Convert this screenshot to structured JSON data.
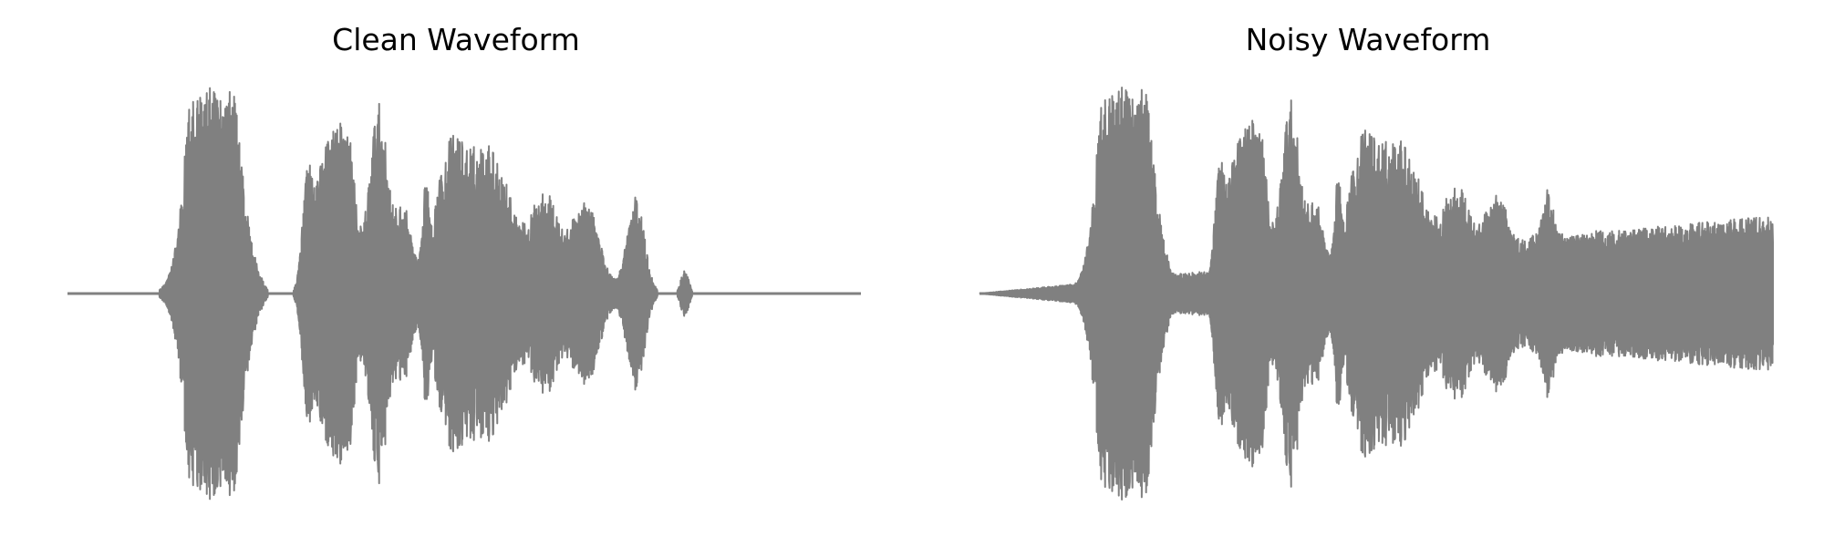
{
  "chart_data": [
    {
      "type": "line",
      "title": "Clean Waveform",
      "xlabel": "",
      "ylabel": "",
      "axes_visible": false,
      "grid": false,
      "color": "#808080",
      "ylim": [
        -1,
        1
      ],
      "bursts": [
        {
          "center": 0.158,
          "width": 0.012,
          "amp": 0.42
        },
        {
          "center": 0.178,
          "width": 0.022,
          "amp": 1.0
        },
        {
          "center": 0.21,
          "width": 0.014,
          "amp": 0.62
        },
        {
          "center": 0.24,
          "width": 0.007,
          "amp": 0.05
        },
        {
          "center": 0.302,
          "width": 0.006,
          "amp": 0.46
        },
        {
          "center": 0.33,
          "width": 0.016,
          "amp": 0.78
        },
        {
          "center": 0.354,
          "width": 0.009,
          "amp": 0.58
        },
        {
          "center": 0.392,
          "width": 0.012,
          "amp": 0.92
        },
        {
          "center": 0.424,
          "width": 0.01,
          "amp": 0.4
        },
        {
          "center": 0.452,
          "width": 0.004,
          "amp": 0.38
        },
        {
          "center": 0.48,
          "width": 0.018,
          "amp": 0.56
        },
        {
          "center": 0.53,
          "width": 0.03,
          "amp": 0.72
        },
        {
          "center": 0.602,
          "width": 0.016,
          "amp": 0.46
        },
        {
          "center": 0.652,
          "width": 0.018,
          "amp": 0.45
        },
        {
          "center": 0.716,
          "width": 0.011,
          "amp": 0.47
        },
        {
          "center": 0.778,
          "width": 0.005,
          "amp": 0.11
        }
      ],
      "noise": {
        "start": 0,
        "end": 0
      }
    },
    {
      "type": "line",
      "title": "Noisy Waveform",
      "xlabel": "",
      "ylabel": "",
      "axes_visible": false,
      "grid": false,
      "color": "#808080",
      "ylim": [
        -1,
        1
      ],
      "bursts": [
        {
          "center": 0.158,
          "width": 0.012,
          "amp": 0.42
        },
        {
          "center": 0.178,
          "width": 0.022,
          "amp": 1.0
        },
        {
          "center": 0.21,
          "width": 0.014,
          "amp": 0.62
        },
        {
          "center": 0.24,
          "width": 0.007,
          "amp": 0.05
        },
        {
          "center": 0.302,
          "width": 0.006,
          "amp": 0.46
        },
        {
          "center": 0.33,
          "width": 0.016,
          "amp": 0.78
        },
        {
          "center": 0.354,
          "width": 0.009,
          "amp": 0.58
        },
        {
          "center": 0.392,
          "width": 0.012,
          "amp": 0.92
        },
        {
          "center": 0.424,
          "width": 0.01,
          "amp": 0.4
        },
        {
          "center": 0.452,
          "width": 0.004,
          "amp": 0.38
        },
        {
          "center": 0.48,
          "width": 0.018,
          "amp": 0.56
        },
        {
          "center": 0.53,
          "width": 0.03,
          "amp": 0.72
        },
        {
          "center": 0.602,
          "width": 0.016,
          "amp": 0.46
        },
        {
          "center": 0.652,
          "width": 0.018,
          "amp": 0.45
        },
        {
          "center": 0.716,
          "width": 0.011,
          "amp": 0.47
        },
        {
          "center": 0.778,
          "width": 0.005,
          "amp": 0.11
        }
      ],
      "noise": {
        "start": 0.0,
        "end": 0.38
      }
    }
  ]
}
